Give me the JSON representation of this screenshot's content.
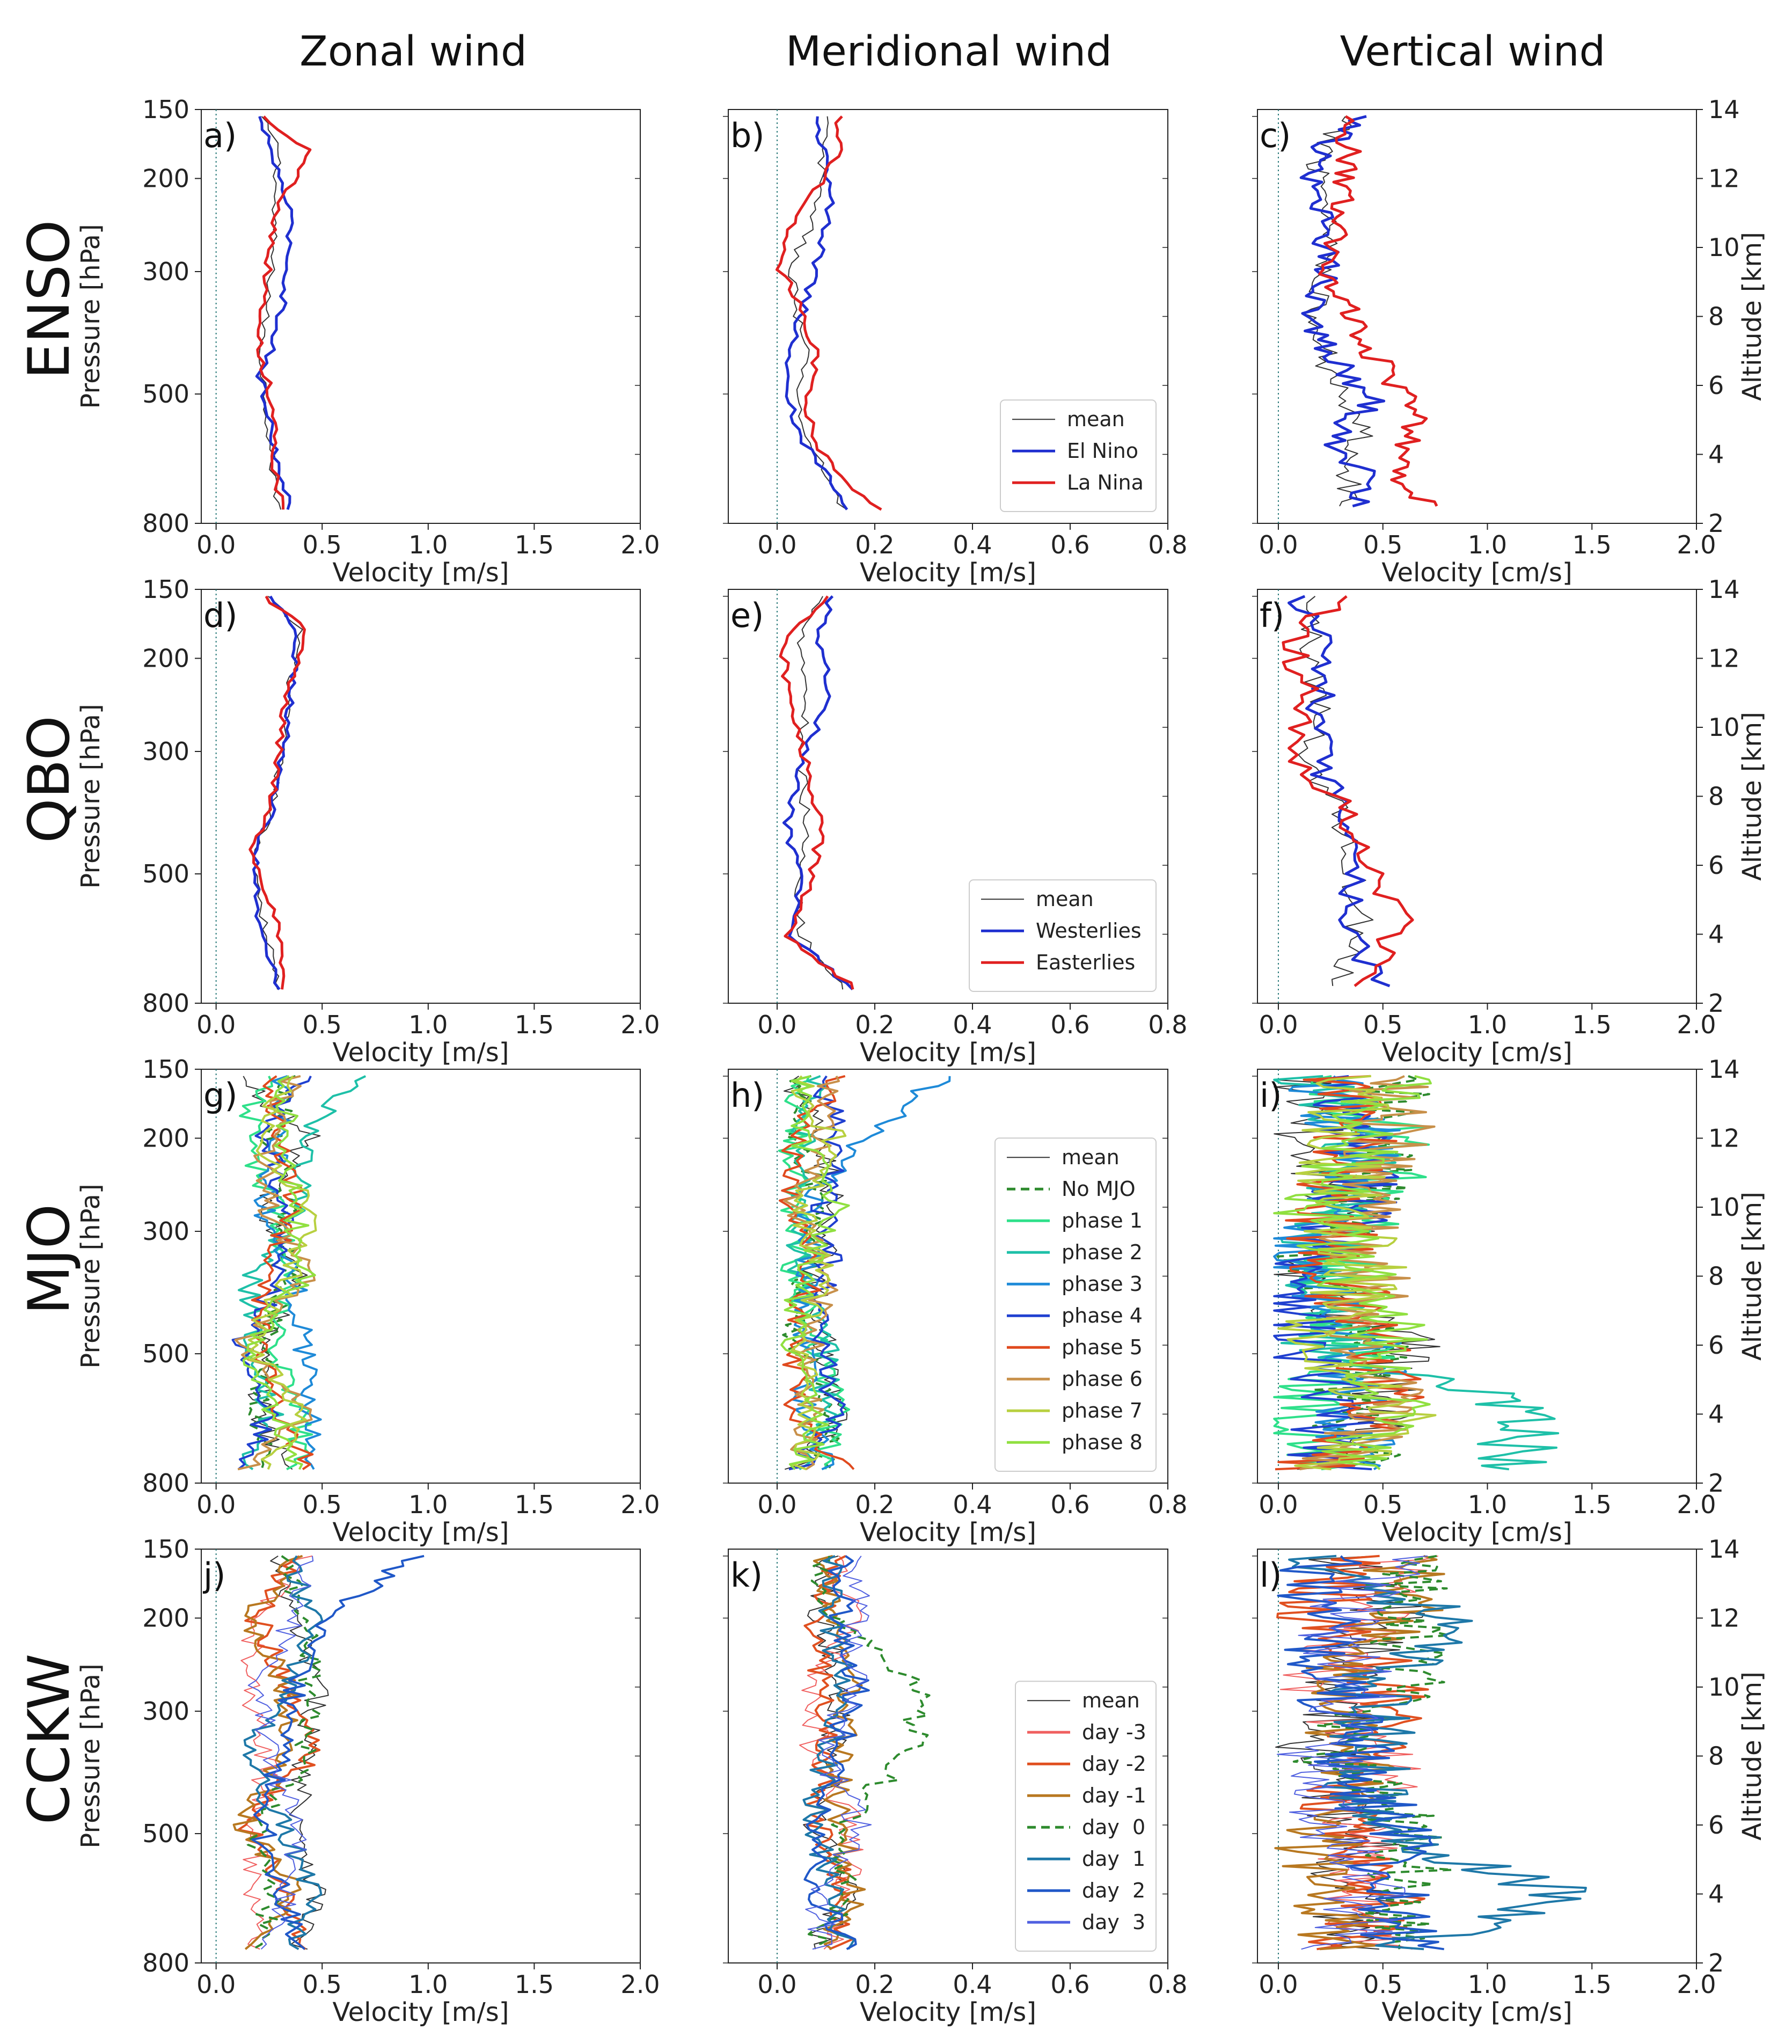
{
  "column_titles": [
    "Zonal wind",
    "Meridional wind",
    "Vertical wind"
  ],
  "row_titles": [
    "ENSO",
    "QBO",
    "MJO",
    "CCKW"
  ],
  "axis_labels": {
    "y_left": "Pressure [hPa]",
    "y_right": "Altitude [km]",
    "x_zonal": "Velocity [m/s]",
    "x_meridional": "Velocity [m/s]",
    "x_vertical": "Velocity [cm/s]"
  },
  "ticks": {
    "pressure": [
      "150",
      "200",
      "300",
      "500",
      "800"
    ],
    "altitude": [
      "2",
      "4",
      "6",
      "8",
      "10",
      "12",
      "14"
    ],
    "x_zonal": [
      "0.0",
      "0.5",
      "1.0",
      "1.5",
      "2.0"
    ],
    "x_meridional": [
      "0.0",
      "0.2",
      "0.4",
      "0.6",
      "0.8"
    ],
    "x_vertical": [
      "0.0",
      "0.5",
      "1.0",
      "1.5",
      "2.0"
    ]
  },
  "legends": {
    "ENSO": [
      "mean",
      "El Nino",
      "La Nina"
    ],
    "QBO": [
      "mean",
      "Westerlies",
      "Easterlies"
    ],
    "MJO": [
      "mean",
      "No MJO",
      "phase 1",
      "phase 2",
      "phase 3",
      "phase 4",
      "phase 5",
      "phase 6",
      "phase 7",
      "phase 8"
    ],
    "CCKW": [
      "mean",
      "day -3",
      "day -2",
      "day -1",
      "day  0",
      "day  1",
      "day  2",
      "day  3"
    ]
  },
  "colors": {
    "mean": "#333333",
    "El Nino": "#1f2fd0",
    "La Nina": "#e02020",
    "Westerlies": "#1f2fd0",
    "Easterlies": "#e02020",
    "No MJO": "#2e8b2e",
    "phase 1": "#2ee08a",
    "phase 2": "#1ec0a8",
    "phase 3": "#1e8ad8",
    "phase 4": "#2040d0",
    "phase 5": "#e04a1e",
    "phase 6": "#c8904a",
    "phase 7": "#b8d040",
    "phase 8": "#90e040",
    "day -3": "#f06060",
    "day -2": "#e05020",
    "day -1": "#b87820",
    "day  0": "#2e8b2e",
    "day  1": "#1e78a8",
    "day  2": "#2058c8",
    "day  3": "#5060e0"
  },
  "chart_data": [
    {
      "panel": "a)",
      "type": "line",
      "row": "ENSO",
      "column": "Zonal wind",
      "xlabel": "Velocity [m/s]",
      "ylabel": "Pressure [hPa]",
      "xlim": [
        -0.07,
        2.0
      ],
      "ylim_pressure": [
        150,
        800
      ],
      "y_altitude_km": [
        2.4,
        13.8
      ],
      "series": [
        {
          "name": "mean",
          "x": [
            0.21,
            0.3,
            0.27,
            0.27,
            0.25,
            0.21,
            0.22,
            0.24,
            0.25,
            0.27,
            0.3
          ],
          "y": [
            13.8,
            12.8,
            11.2,
            10.2,
            8.6,
            7.1,
            6.4,
            5.4,
            4.4,
            3.4,
            2.4
          ]
        },
        {
          "name": "El Nino",
          "x": [
            0.2,
            0.26,
            0.34,
            0.35,
            0.32,
            0.27,
            0.2,
            0.24,
            0.27,
            0.3,
            0.35
          ],
          "y": [
            13.8,
            12.8,
            11.2,
            10.2,
            8.6,
            7.1,
            6.4,
            5.4,
            4.4,
            3.4,
            2.4
          ]
        },
        {
          "name": "La Nina",
          "x": [
            0.22,
            0.44,
            0.3,
            0.26,
            0.23,
            0.2,
            0.23,
            0.27,
            0.28,
            0.28,
            0.31
          ],
          "y": [
            13.8,
            12.8,
            11.2,
            10.2,
            8.6,
            7.1,
            6.4,
            5.4,
            4.4,
            3.4,
            2.4
          ]
        }
      ]
    },
    {
      "panel": "b)",
      "type": "line",
      "row": "ENSO",
      "column": "Meridional wind",
      "xlabel": "Velocity [m/s]",
      "xlim": [
        -0.1,
        0.8
      ],
      "y_altitude_km": [
        2.4,
        13.8
      ],
      "series": [
        {
          "name": "mean",
          "x": [
            0.1,
            0.09,
            0.08,
            0.03,
            0.04,
            0.06,
            0.04,
            0.06,
            0.1,
            0.14
          ],
          "y": [
            13.8,
            12.5,
            11.0,
            9.5,
            8.0,
            6.8,
            5.6,
            4.5,
            3.4,
            2.4
          ]
        },
        {
          "name": "El Nino",
          "x": [
            0.08,
            0.1,
            0.11,
            0.08,
            0.05,
            0.02,
            0.02,
            0.05,
            0.1,
            0.15
          ],
          "y": [
            13.8,
            12.5,
            11.0,
            9.5,
            8.0,
            6.8,
            5.6,
            4.5,
            3.4,
            2.4
          ]
        },
        {
          "name": "La Nina",
          "x": [
            0.13,
            0.12,
            0.04,
            0.0,
            0.06,
            0.08,
            0.06,
            0.07,
            0.13,
            0.21
          ],
          "y": [
            13.8,
            12.5,
            11.0,
            9.5,
            8.0,
            6.8,
            5.6,
            4.5,
            3.4,
            2.4
          ]
        }
      ]
    },
    {
      "panel": "c)",
      "type": "line",
      "row": "ENSO",
      "column": "Vertical wind",
      "xlabel": "Velocity [cm/s]",
      "ylabel": "Altitude [km]",
      "xlim": [
        -0.1,
        2.0
      ],
      "ylim": [
        2,
        14
      ],
      "series": [
        {
          "name": "mean",
          "x": [
            0.3,
            0.2,
            0.25,
            0.25,
            0.15,
            0.25,
            0.35,
            0.4,
            0.35,
            0.3
          ],
          "y": [
            13.8,
            12.5,
            11.0,
            9.5,
            8.0,
            6.5,
            5.5,
            4.5,
            3.5,
            2.5
          ]
        },
        {
          "name": "El Nino",
          "x": [
            0.4,
            0.15,
            0.2,
            0.25,
            0.15,
            0.3,
            0.45,
            0.25,
            0.4,
            0.4
          ],
          "y": [
            13.8,
            12.5,
            11.0,
            9.5,
            8.0,
            6.5,
            5.5,
            4.5,
            3.5,
            2.5
          ]
        },
        {
          "name": "La Nina",
          "x": [
            0.3,
            0.35,
            0.3,
            0.2,
            0.35,
            0.5,
            0.65,
            0.65,
            0.55,
            0.7
          ],
          "y": [
            13.8,
            12.5,
            11.0,
            9.5,
            8.0,
            6.5,
            5.5,
            4.5,
            3.5,
            2.5
          ]
        }
      ]
    },
    {
      "panel": "d)",
      "type": "line",
      "row": "QBO",
      "column": "Zonal wind",
      "xlabel": "Velocity [m/s]",
      "ylabel": "Pressure [hPa]",
      "xlim": [
        -0.07,
        2.0
      ],
      "y_altitude_km": [
        2.4,
        13.8
      ],
      "series": [
        {
          "name": "mean",
          "x": [
            0.24,
            0.4,
            0.34,
            0.3,
            0.26,
            0.18,
            0.22,
            0.3
          ],
          "y": [
            13.8,
            12.8,
            11.0,
            9.0,
            7.5,
            6.5,
            4.5,
            2.4
          ]
        },
        {
          "name": "Westerlies",
          "x": [
            0.25,
            0.39,
            0.36,
            0.31,
            0.26,
            0.18,
            0.2,
            0.29
          ],
          "y": [
            13.8,
            12.8,
            11.0,
            9.0,
            7.5,
            6.5,
            4.5,
            2.4
          ]
        },
        {
          "name": "Easterlies",
          "x": [
            0.23,
            0.43,
            0.33,
            0.29,
            0.25,
            0.17,
            0.28,
            0.32
          ],
          "y": [
            13.8,
            12.8,
            11.0,
            9.0,
            7.5,
            6.5,
            4.5,
            2.4
          ]
        }
      ]
    },
    {
      "panel": "e)",
      "type": "line",
      "row": "QBO",
      "column": "Meridional wind",
      "xlabel": "Velocity [m/s]",
      "xlim": [
        -0.1,
        0.8
      ],
      "y_altitude_km": [
        2.4,
        13.8
      ],
      "series": [
        {
          "name": "mean",
          "x": [
            0.09,
            0.05,
            0.06,
            0.05,
            0.06,
            0.04,
            0.05,
            0.14
          ],
          "y": [
            13.8,
            12.5,
            11.0,
            9.0,
            7.0,
            5.5,
            4.0,
            2.4
          ]
        },
        {
          "name": "Westerlies",
          "x": [
            0.11,
            0.08,
            0.11,
            0.05,
            0.02,
            0.05,
            0.03,
            0.15
          ],
          "y": [
            13.8,
            12.5,
            11.0,
            9.0,
            7.0,
            5.5,
            4.0,
            2.4
          ]
        },
        {
          "name": "Easterlies",
          "x": [
            0.1,
            0.01,
            0.02,
            0.06,
            0.09,
            0.07,
            0.02,
            0.16
          ],
          "y": [
            13.8,
            12.5,
            11.0,
            9.0,
            7.0,
            5.5,
            4.0,
            2.4
          ]
        }
      ]
    },
    {
      "panel": "f)",
      "type": "line",
      "row": "QBO",
      "column": "Vertical wind",
      "xlabel": "Velocity [cm/s]",
      "ylabel": "Altitude [km]",
      "xlim": [
        -0.1,
        2.0
      ],
      "ylim": [
        2,
        14
      ],
      "series": [
        {
          "name": "mean",
          "x": [
            0.15,
            0.15,
            0.2,
            0.15,
            0.3,
            0.35,
            0.4,
            0.3
          ],
          "y": [
            13.8,
            12.5,
            11.0,
            9.0,
            7.5,
            6.0,
            4.5,
            2.5
          ]
        },
        {
          "name": "Westerlies",
          "x": [
            0.1,
            0.2,
            0.2,
            0.2,
            0.3,
            0.4,
            0.3,
            0.5
          ],
          "y": [
            13.8,
            12.5,
            11.0,
            9.0,
            7.5,
            6.0,
            4.5,
            2.5
          ]
        },
        {
          "name": "Easterlies",
          "x": [
            0.3,
            0.05,
            0.15,
            0.05,
            0.35,
            0.4,
            0.6,
            0.4
          ],
          "y": [
            13.8,
            12.5,
            11.0,
            9.0,
            7.5,
            6.0,
            4.5,
            2.5
          ]
        }
      ]
    },
    {
      "panel": "g)",
      "type": "line",
      "row": "MJO",
      "column": "Zonal wind",
      "xlabel": "Velocity [m/s]",
      "ylabel": "Pressure [hPa]",
      "xlim": [
        -0.07,
        2.0
      ],
      "note": "10 noisy profiles; mean ~0.25-0.35 m/s, maxima near 0.7 m/s at 13 km"
    },
    {
      "panel": "h)",
      "type": "line",
      "row": "MJO",
      "column": "Meridional wind",
      "xlabel": "Velocity [m/s]",
      "xlim": [
        -0.1,
        0.8
      ],
      "note": "10 noisy profiles between 0.02 and 0.35 m/s"
    },
    {
      "panel": "i)",
      "type": "line",
      "row": "MJO",
      "column": "Vertical wind",
      "xlabel": "Velocity [cm/s]",
      "ylabel": "Altitude [km]",
      "xlim": [
        -0.1,
        2.0
      ],
      "ylim": [
        2,
        14
      ],
      "note": "10 noisy profiles between 0 and 1.35 cm/s"
    },
    {
      "panel": "j)",
      "type": "line",
      "row": "CCKW",
      "column": "Zonal wind",
      "xlabel": "Velocity [m/s]",
      "ylabel": "Pressure [hPa]",
      "xlim": [
        -0.07,
        2.0
      ],
      "note": "8 noisy profiles; max ~1.0 m/s near 13 km"
    },
    {
      "panel": "k)",
      "type": "line",
      "row": "CCKW",
      "column": "Meridional wind",
      "xlabel": "Velocity [m/s]",
      "xlim": [
        -0.1,
        0.8
      ],
      "note": "8 noisy profiles between 0.0 and 0.35 m/s"
    },
    {
      "panel": "l)",
      "type": "line",
      "row": "CCKW",
      "column": "Vertical wind",
      "xlabel": "Velocity [cm/s]",
      "ylabel": "Altitude [km]",
      "xlim": [
        -0.1,
        2.0
      ],
      "ylim": [
        2,
        14
      ],
      "note": "8 noisy profiles; max ~1.45 cm/s near 3.5 km"
    }
  ]
}
